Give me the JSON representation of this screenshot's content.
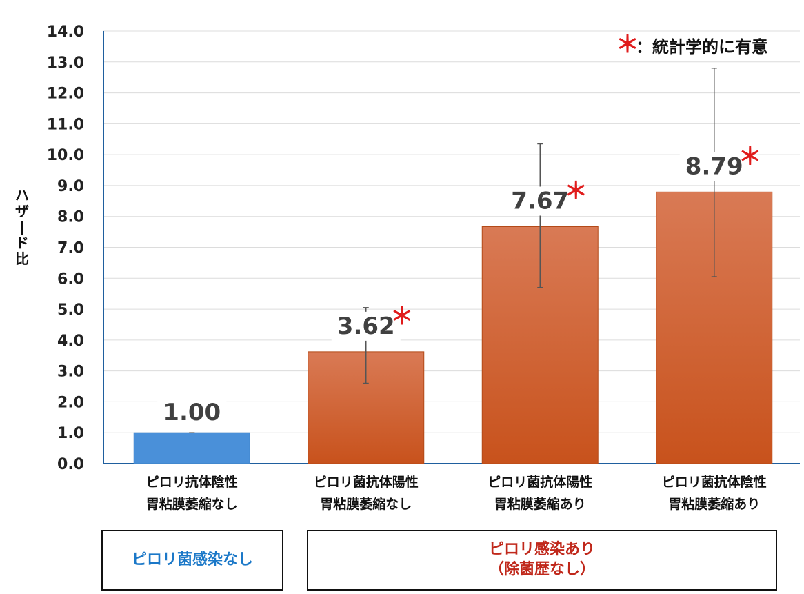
{
  "chart_data": {
    "type": "bar",
    "ylabel": "ハザード比",
    "ylim": [
      0,
      14
    ],
    "yticks": [
      "0.0",
      "1.0",
      "2.0",
      "3.0",
      "4.0",
      "5.0",
      "6.0",
      "7.0",
      "8.0",
      "9.0",
      "10.0",
      "11.0",
      "12.0",
      "13.0",
      "14.0"
    ],
    "grid": true,
    "categories": [
      {
        "line1": "ピロリ抗体陰性",
        "line2": "胃粘膜萎縮なし"
      },
      {
        "line1": "ピロリ菌抗体陽性",
        "line2": "胃粘膜萎縮なし"
      },
      {
        "line1": "ピロリ菌抗体陽性",
        "line2": "胃粘膜萎縮あり"
      },
      {
        "line1": "ピロリ菌抗体陰性",
        "line2": "胃粘膜萎縮あり"
      }
    ],
    "values": [
      1.0,
      3.62,
      7.67,
      8.79
    ],
    "value_labels": [
      "1.00",
      "3.62",
      "7.67",
      "8.79"
    ],
    "error_low": [
      1.0,
      2.6,
      5.7,
      6.05
    ],
    "error_high": [
      1.0,
      5.05,
      10.35,
      12.8
    ],
    "significant": [
      false,
      true,
      true,
      true
    ],
    "bar_colors": [
      "#4a90d9",
      "#cd5a28",
      "#cd5a28",
      "#cd5a28"
    ],
    "legend": {
      "star": "＊",
      "text": "：統計学的に有意"
    },
    "star_mark": "＊"
  },
  "groups": {
    "none": {
      "line1": "ピロリ菌感染なし"
    },
    "yes": {
      "line1": "ピロリ感染あり",
      "line2": "（除菌歴なし）"
    }
  },
  "colors": {
    "none_text": "#1b78c8",
    "yes_text": "#c0281b",
    "star": "#e01b1b"
  }
}
